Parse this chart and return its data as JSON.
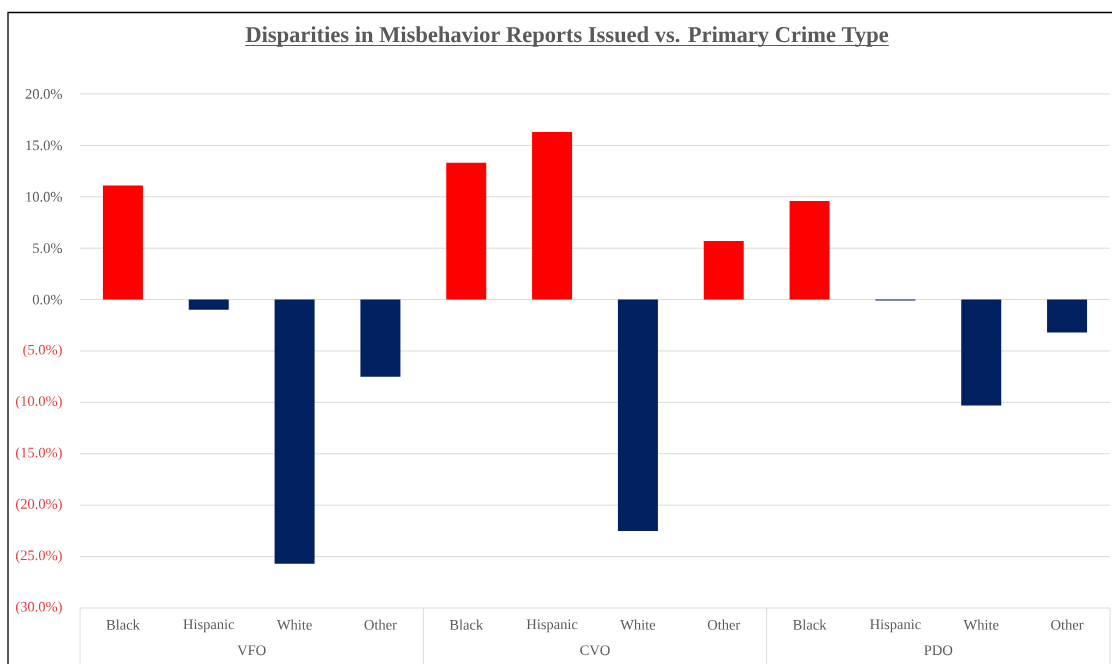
{
  "chart_data": {
    "type": "bar",
    "title": "Disparities in Misbehavior Reports Issued vs. Primary Crime Type",
    "categories": [
      "Black",
      "Hispanic",
      "White",
      "Other",
      "Black",
      "Hispanic",
      "White",
      "Other",
      "Black",
      "Hispanic",
      "White",
      "Other"
    ],
    "values": [
      11.1,
      -1.0,
      -25.7,
      -7.5,
      13.3,
      16.3,
      -22.5,
      5.7,
      9.6,
      -0.1,
      -10.3,
      -3.2
    ],
    "colors": [
      "#ff0000",
      "#002060",
      "#002060",
      "#002060",
      "#ff0000",
      "#ff0000",
      "#002060",
      "#ff0000",
      "#ff0000",
      "#002060",
      "#002060",
      "#002060"
    ],
    "ylim": [
      -30,
      20
    ],
    "yticks": [
      {
        "value": 20,
        "label": "20.0%"
      },
      {
        "value": 15,
        "label": "15.0%"
      },
      {
        "value": 10,
        "label": "10.0%"
      },
      {
        "value": 5,
        "label": "5.0%"
      },
      {
        "value": 0,
        "label": "0.0%"
      },
      {
        "value": -5,
        "label": "(5.0%)"
      },
      {
        "value": -10,
        "label": "(10.0%)"
      },
      {
        "value": -15,
        "label": "(15.0%)"
      },
      {
        "value": -20,
        "label": "(20.0%)"
      },
      {
        "value": -25,
        "label": "(25.0%)"
      },
      {
        "value": -30,
        "label": "(30.0%)"
      }
    ],
    "grid": "y",
    "annotations": [
      "VFO",
      "CVO",
      "PDO"
    ]
  }
}
